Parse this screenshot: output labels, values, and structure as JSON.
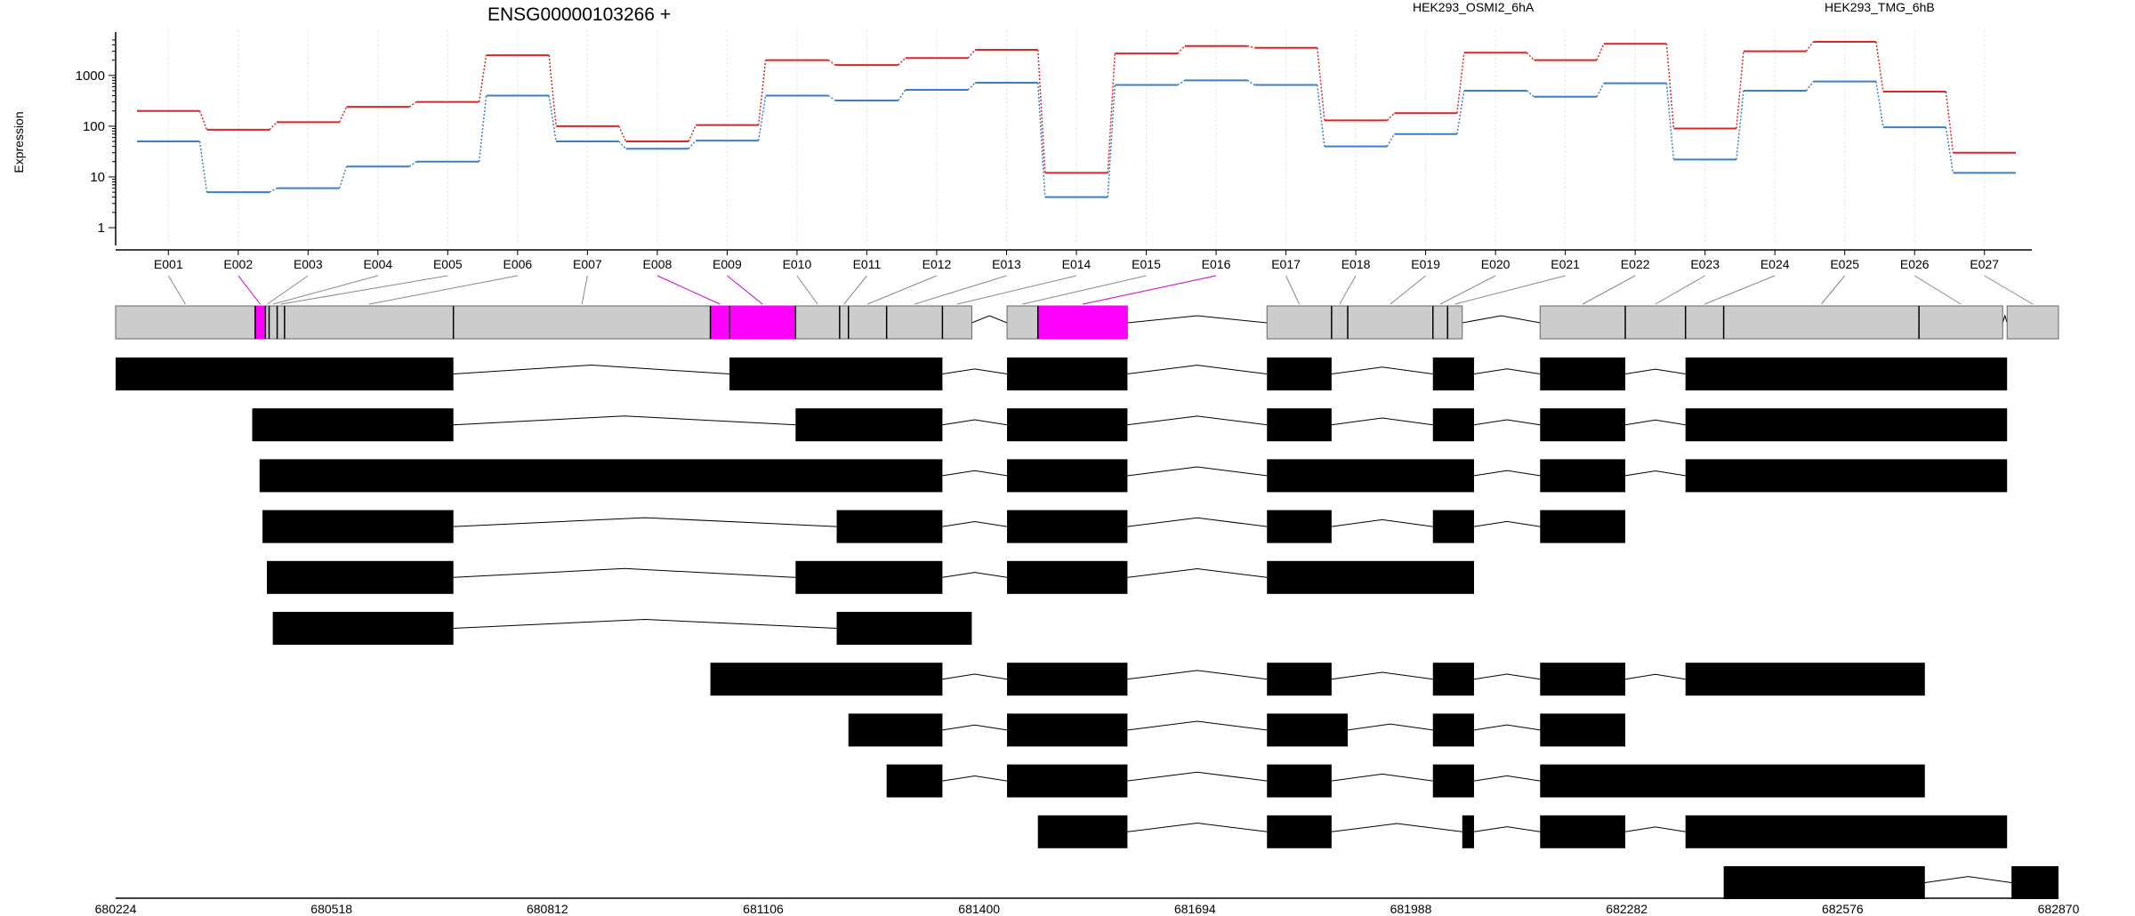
{
  "chart_data": {
    "type": "line",
    "title": "ENSG00000103266 +",
    "ylabel": "Expression",
    "y_scale": "log",
    "y_ticks": [
      "1",
      "10",
      "100",
      "1000"
    ],
    "grid": true,
    "legend_position": "top-right",
    "categories": [
      "E001",
      "E002",
      "E003",
      "E004",
      "E005",
      "E006",
      "E007",
      "E008",
      "E009",
      "E010",
      "E011",
      "E012",
      "E013",
      "E014",
      "E015",
      "E016",
      "E017",
      "E018",
      "E019",
      "E020",
      "E021",
      "E022",
      "E023",
      "E024",
      "E025",
      "E026",
      "E027"
    ],
    "series": [
      {
        "name": "HEK293_OSMI2_6hA",
        "color": "#d62728",
        "values": [
          200,
          85,
          120,
          240,
          300,
          2500,
          100,
          50,
          105,
          2000,
          1600,
          2200,
          3200,
          12,
          2700,
          3800,
          3500,
          130,
          180,
          2800,
          2000,
          4200,
          90,
          3000,
          4600,
          480,
          30
        ]
      },
      {
        "name": "HEK293_TMG_6hB",
        "color": "#3a7fc4",
        "values": [
          50,
          5,
          6,
          16,
          20,
          400,
          50,
          36,
          52,
          400,
          320,
          520,
          720,
          4,
          650,
          800,
          650,
          40,
          70,
          500,
          380,
          700,
          22,
          500,
          760,
          95,
          12
        ]
      }
    ],
    "exon_segments": [
      {
        "id": "E001",
        "start": 680224,
        "end": 680414,
        "highlight": false
      },
      {
        "id": "E002",
        "start": 680414,
        "end": 680428,
        "highlight": true
      },
      {
        "id": "E003",
        "start": 680428,
        "end": 680433,
        "highlight": false
      },
      {
        "id": "E004",
        "start": 680433,
        "end": 680444,
        "highlight": false
      },
      {
        "id": "E005",
        "start": 680444,
        "end": 680454,
        "highlight": false
      },
      {
        "id": "E006",
        "start": 680454,
        "end": 680684,
        "highlight": false
      },
      {
        "id": "E007",
        "start": 680684,
        "end": 681034,
        "highlight": false
      },
      {
        "id": "E008",
        "start": 681034,
        "end": 681060,
        "highlight": true
      },
      {
        "id": "E009",
        "start": 681060,
        "end": 681150,
        "highlight": true
      },
      {
        "id": "E010",
        "start": 681150,
        "end": 681210,
        "highlight": false
      },
      {
        "id": "E011",
        "start": 681210,
        "end": 681222,
        "highlight": false
      },
      {
        "id": "E012",
        "start": 681222,
        "end": 681274,
        "highlight": false
      },
      {
        "id": "E013",
        "start": 681274,
        "end": 681350,
        "highlight": false
      },
      {
        "id": "E014",
        "start": 681350,
        "end": 681390,
        "highlight": false
      },
      {
        "id": "E015",
        "start": 681438,
        "end": 681480,
        "highlight": false
      },
      {
        "id": "E016",
        "start": 681480,
        "end": 681602,
        "highlight": true
      },
      {
        "id": "E017",
        "start": 681792,
        "end": 681880,
        "highlight": false
      },
      {
        "id": "E018",
        "start": 681880,
        "end": 681902,
        "highlight": false
      },
      {
        "id": "E019",
        "start": 681902,
        "end": 682018,
        "highlight": false
      },
      {
        "id": "E020",
        "start": 682018,
        "end": 682038,
        "highlight": false
      },
      {
        "id": "E021",
        "start": 682038,
        "end": 682058,
        "highlight": false
      },
      {
        "id": "E022",
        "start": 682164,
        "end": 682280,
        "highlight": false
      },
      {
        "id": "E023",
        "start": 682280,
        "end": 682362,
        "highlight": false
      },
      {
        "id": "E024",
        "start": 682362,
        "end": 682414,
        "highlight": false
      },
      {
        "id": "E025",
        "start": 682414,
        "end": 682680,
        "highlight": false
      },
      {
        "id": "E026",
        "start": 682680,
        "end": 682794,
        "highlight": false
      },
      {
        "id": "E027",
        "start": 682800,
        "end": 682870,
        "highlight": false
      }
    ],
    "transcripts": [
      [
        [
          680224,
          680684
        ],
        [
          681060,
          681350
        ],
        [
          681438,
          681602
        ],
        [
          681792,
          681880
        ],
        [
          682018,
          682074
        ],
        [
          682164,
          682280
        ],
        [
          682362,
          682800
        ]
      ],
      [
        [
          680410,
          680684
        ],
        [
          681150,
          681350
        ],
        [
          681438,
          681602
        ],
        [
          681792,
          681880
        ],
        [
          682018,
          682074
        ],
        [
          682164,
          682280
        ],
        [
          682362,
          682800
        ]
      ],
      [
        [
          680420,
          681350
        ],
        [
          681438,
          681602
        ],
        [
          681792,
          682074
        ],
        [
          682164,
          682280
        ],
        [
          682362,
          682800
        ]
      ],
      [
        [
          680424,
          680684
        ],
        [
          681206,
          681350
        ],
        [
          681438,
          681602
        ],
        [
          681792,
          681880
        ],
        [
          682018,
          682074
        ],
        [
          682164,
          682280
        ]
      ],
      [
        [
          680430,
          680684
        ],
        [
          681150,
          681350
        ],
        [
          681438,
          681602
        ],
        [
          681792,
          682074
        ]
      ],
      [
        [
          680438,
          680684
        ],
        [
          681206,
          681390
        ]
      ],
      [
        [
          681034,
          681350
        ],
        [
          681438,
          681602
        ],
        [
          681792,
          681880
        ],
        [
          682018,
          682074
        ],
        [
          682164,
          682280
        ],
        [
          682362,
          682688
        ]
      ],
      [
        [
          681222,
          681350
        ],
        [
          681438,
          681602
        ],
        [
          681792,
          681902
        ],
        [
          682018,
          682074
        ],
        [
          682164,
          682280
        ]
      ],
      [
        [
          681274,
          681350
        ],
        [
          681438,
          681602
        ],
        [
          681792,
          681880
        ],
        [
          682018,
          682074
        ],
        [
          682164,
          682688
        ]
      ],
      [
        [
          681480,
          681602
        ],
        [
          681792,
          681880
        ],
        [
          682058,
          682074
        ],
        [
          682164,
          682280
        ],
        [
          682362,
          682800
        ]
      ],
      [
        [
          682414,
          682688
        ],
        [
          682806,
          682870
        ]
      ]
    ],
    "x_ticks": [
      680224,
      680518,
      680812,
      681106,
      681400,
      681694,
      681988,
      682282,
      682576,
      682870
    ]
  }
}
